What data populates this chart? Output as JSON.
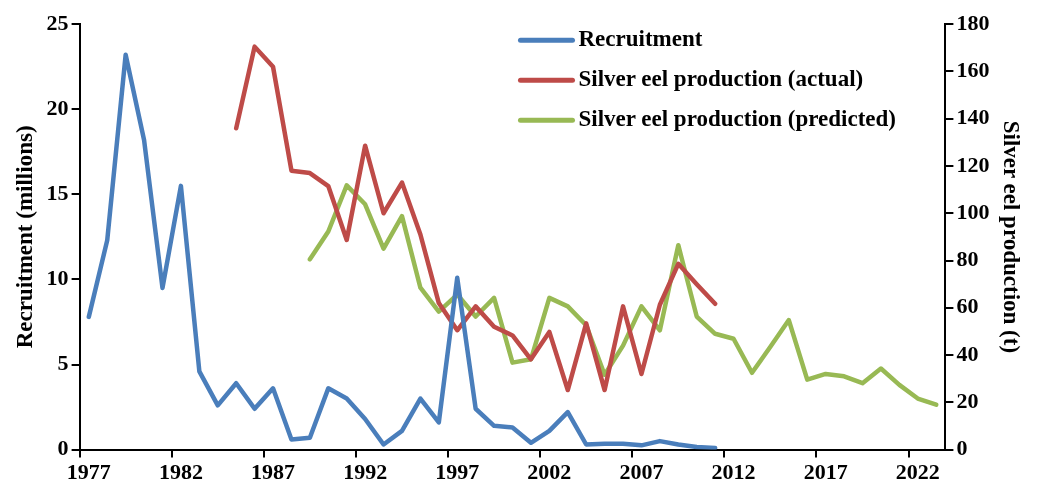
{
  "chart_data": {
    "type": "line",
    "categories": [
      "1977",
      null,
      null,
      null,
      null,
      "1982",
      null,
      null,
      null,
      null,
      "1987",
      null,
      null,
      null,
      null,
      "1992",
      null,
      null,
      null,
      null,
      "1997",
      null,
      null,
      null,
      null,
      "2002",
      null,
      null,
      null,
      null,
      "2007",
      null,
      null,
      null,
      null,
      "2012",
      null,
      null,
      null,
      null,
      "2017",
      null,
      null,
      null,
      null,
      "2022",
      null
    ],
    "series": [
      {
        "name": "Recruitment",
        "color": "#4a7ebb",
        "values": [
          7.8,
          12.3,
          23.2,
          18.2,
          9.5,
          15.5,
          4.6,
          2.6,
          3.9,
          2.4,
          3.6,
          0.6,
          0.7,
          3.6,
          3.0,
          1.8,
          0.3,
          1.1,
          3.0,
          1.6,
          10.1,
          2.4,
          1.4,
          1.3,
          0.4,
          1.1,
          2.2,
          0.3,
          0.35,
          0.35,
          0.25,
          0.5,
          0.3,
          0.15,
          0.1,
          null,
          null,
          null,
          null,
          null,
          null,
          null,
          null,
          null,
          null,
          null,
          null
        ]
      },
      {
        "name": "Silver eel production (actual)",
        "color": "#be4b48",
        "axis": "y2",
        "values": [
          null,
          null,
          null,
          null,
          null,
          null,
          null,
          null,
          136,
          170.5,
          162,
          118,
          117,
          111.5,
          88.7,
          128.6,
          100,
          113,
          91,
          62,
          50.5,
          60.6,
          52,
          48.3,
          38.2,
          49.8,
          25.2,
          53.4,
          25.2,
          60.6,
          32,
          61.3,
          78.6,
          70,
          61.7,
          null,
          null,
          null,
          null,
          null,
          null,
          null,
          null,
          null,
          null,
          null,
          null
        ]
      },
      {
        "name": "Silver eel production (predicted)",
        "color": "#98b954",
        "axis": "y2",
        "values": [
          null,
          null,
          null,
          null,
          null,
          null,
          null,
          null,
          null,
          null,
          null,
          null,
          80.5,
          92.3,
          111.8,
          103.8,
          85,
          98.8,
          68.5,
          58.4,
          65.6,
          56.3,
          64.2,
          36.8,
          38.2,
          64.2,
          60.6,
          52.6,
          31.7,
          44,
          60.6,
          50.5,
          86.5,
          56.3,
          49,
          46.9,
          32.5,
          43.5,
          54.8,
          29.6,
          32,
          31,
          28.1,
          34.3,
          27.4,
          21.6,
          19
        ]
      }
    ],
    "ylabel": "Recruitment (millions)",
    "y2label": "Silver eel production (t)",
    "ylim": [
      0,
      25
    ],
    "yticks": [
      0,
      5,
      10,
      15,
      20,
      25
    ],
    "y2lim": [
      0,
      180
    ],
    "y2ticks": [
      0,
      20,
      40,
      60,
      80,
      100,
      120,
      140,
      160,
      180
    ],
    "grid": false,
    "legend": "top right",
    "marker": "none",
    "line_style": "solid"
  }
}
